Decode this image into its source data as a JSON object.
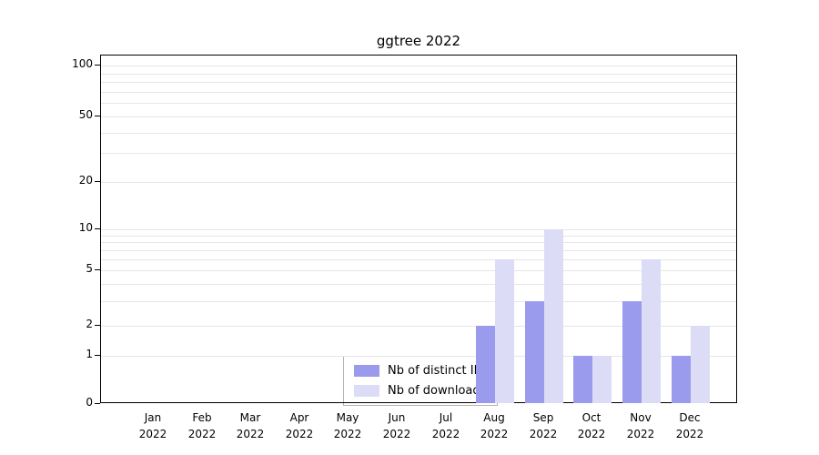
{
  "figure": {
    "title": "ggtree 2022"
  },
  "legend": {
    "items": [
      {
        "label": "Nb of distinct IPs",
        "color": "#9b9bed"
      },
      {
        "label": "Nb of downloads",
        "color": "#dcdcf7"
      }
    ]
  },
  "chart_data": {
    "type": "bar",
    "title": "ggtree 2022",
    "categories": [
      "Jan",
      "Feb",
      "Mar",
      "Apr",
      "May",
      "Jun",
      "Jul",
      "Aug",
      "Sep",
      "Oct",
      "Nov",
      "Dec"
    ],
    "year": "2022",
    "series": [
      {
        "name": "Nb of distinct IPs",
        "color": "#9b9bed",
        "values": [
          0,
          0,
          0,
          0,
          0,
          0,
          0,
          2,
          3,
          1,
          3,
          1
        ]
      },
      {
        "name": "Nb of downloads",
        "color": "#dcdcf7",
        "values": [
          0,
          0,
          0,
          0,
          0,
          0,
          0,
          6,
          10,
          1,
          6,
          2
        ]
      }
    ],
    "y_ticks": [
      0,
      1,
      2,
      5,
      10,
      20,
      50,
      100
    ],
    "y_scale": "log",
    "ylim": [
      0,
      100
    ],
    "grid": "horizontal",
    "gridline_values": [
      1,
      2,
      3,
      4,
      5,
      6,
      7,
      8,
      9,
      10,
      20,
      30,
      40,
      50,
      60,
      70,
      80,
      90,
      100
    ],
    "legend_position": "bottom-center-inside"
  }
}
